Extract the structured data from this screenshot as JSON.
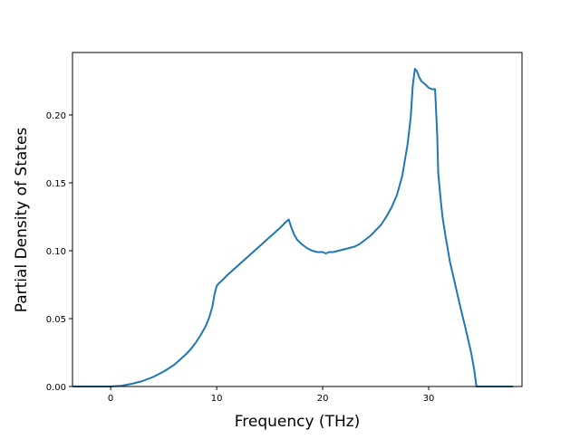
{
  "chart_data": {
    "type": "line",
    "title": "",
    "xlabel": "Frequency (THz)",
    "ylabel": "Partial Density of States",
    "xlim": [
      -3.6,
      38.8
    ],
    "ylim": [
      0.0,
      0.246
    ],
    "xticks": [
      0,
      10,
      20,
      30
    ],
    "xtick_labels": [
      "0",
      "10",
      "20",
      "30"
    ],
    "yticks": [
      0.0,
      0.05,
      0.1,
      0.15,
      0.2
    ],
    "ytick_labels": [
      "0.00",
      "0.05",
      "0.10",
      "0.15",
      "0.20"
    ],
    "grid": false,
    "legend": "none",
    "colors": {
      "line": "#1f77b4"
    },
    "series": [
      {
        "x": [
          -3.5,
          -1.0,
          0.0,
          1.0,
          2.0,
          3.0,
          4.0,
          5.0,
          6.0,
          7.0,
          7.5,
          8.0,
          8.5,
          9.0,
          9.3,
          9.6,
          9.8,
          10.0,
          10.2,
          10.5,
          11.0,
          12.0,
          13.0,
          14.0,
          15.0,
          16.0,
          16.5,
          16.8,
          17.0,
          17.3,
          17.6,
          18.0,
          18.5,
          19.0,
          19.5,
          20.0,
          20.3,
          20.6,
          21.0,
          21.5,
          22.0,
          22.5,
          23.0,
          23.5,
          24.0,
          24.5,
          25.0,
          25.5,
          26.0,
          26.5,
          27.0,
          27.5,
          28.0,
          28.3,
          28.5,
          28.7,
          28.9,
          29.1,
          29.3,
          29.6,
          30.0,
          30.3,
          30.6,
          30.8,
          30.9,
          31.1,
          31.3,
          31.6,
          32.0,
          32.5,
          33.0,
          33.5,
          34.0,
          34.3,
          34.5,
          34.6,
          35.0,
          37.9
        ],
        "y": [
          0.0,
          0.0,
          0.0,
          0.0005,
          0.002,
          0.004,
          0.007,
          0.011,
          0.016,
          0.023,
          0.027,
          0.032,
          0.038,
          0.045,
          0.051,
          0.059,
          0.068,
          0.074,
          0.076,
          0.078,
          0.082,
          0.089,
          0.096,
          0.103,
          0.11,
          0.117,
          0.121,
          0.123,
          0.118,
          0.112,
          0.108,
          0.105,
          0.102,
          0.1,
          0.099,
          0.099,
          0.098,
          0.099,
          0.099,
          0.1,
          0.101,
          0.102,
          0.103,
          0.105,
          0.108,
          0.111,
          0.115,
          0.119,
          0.125,
          0.132,
          0.141,
          0.155,
          0.178,
          0.198,
          0.222,
          0.234,
          0.232,
          0.228,
          0.225,
          0.223,
          0.22,
          0.219,
          0.219,
          0.186,
          0.157,
          0.14,
          0.125,
          0.11,
          0.092,
          0.075,
          0.058,
          0.042,
          0.025,
          0.012,
          0.0,
          0.0,
          0.0,
          0.0
        ]
      }
    ]
  }
}
